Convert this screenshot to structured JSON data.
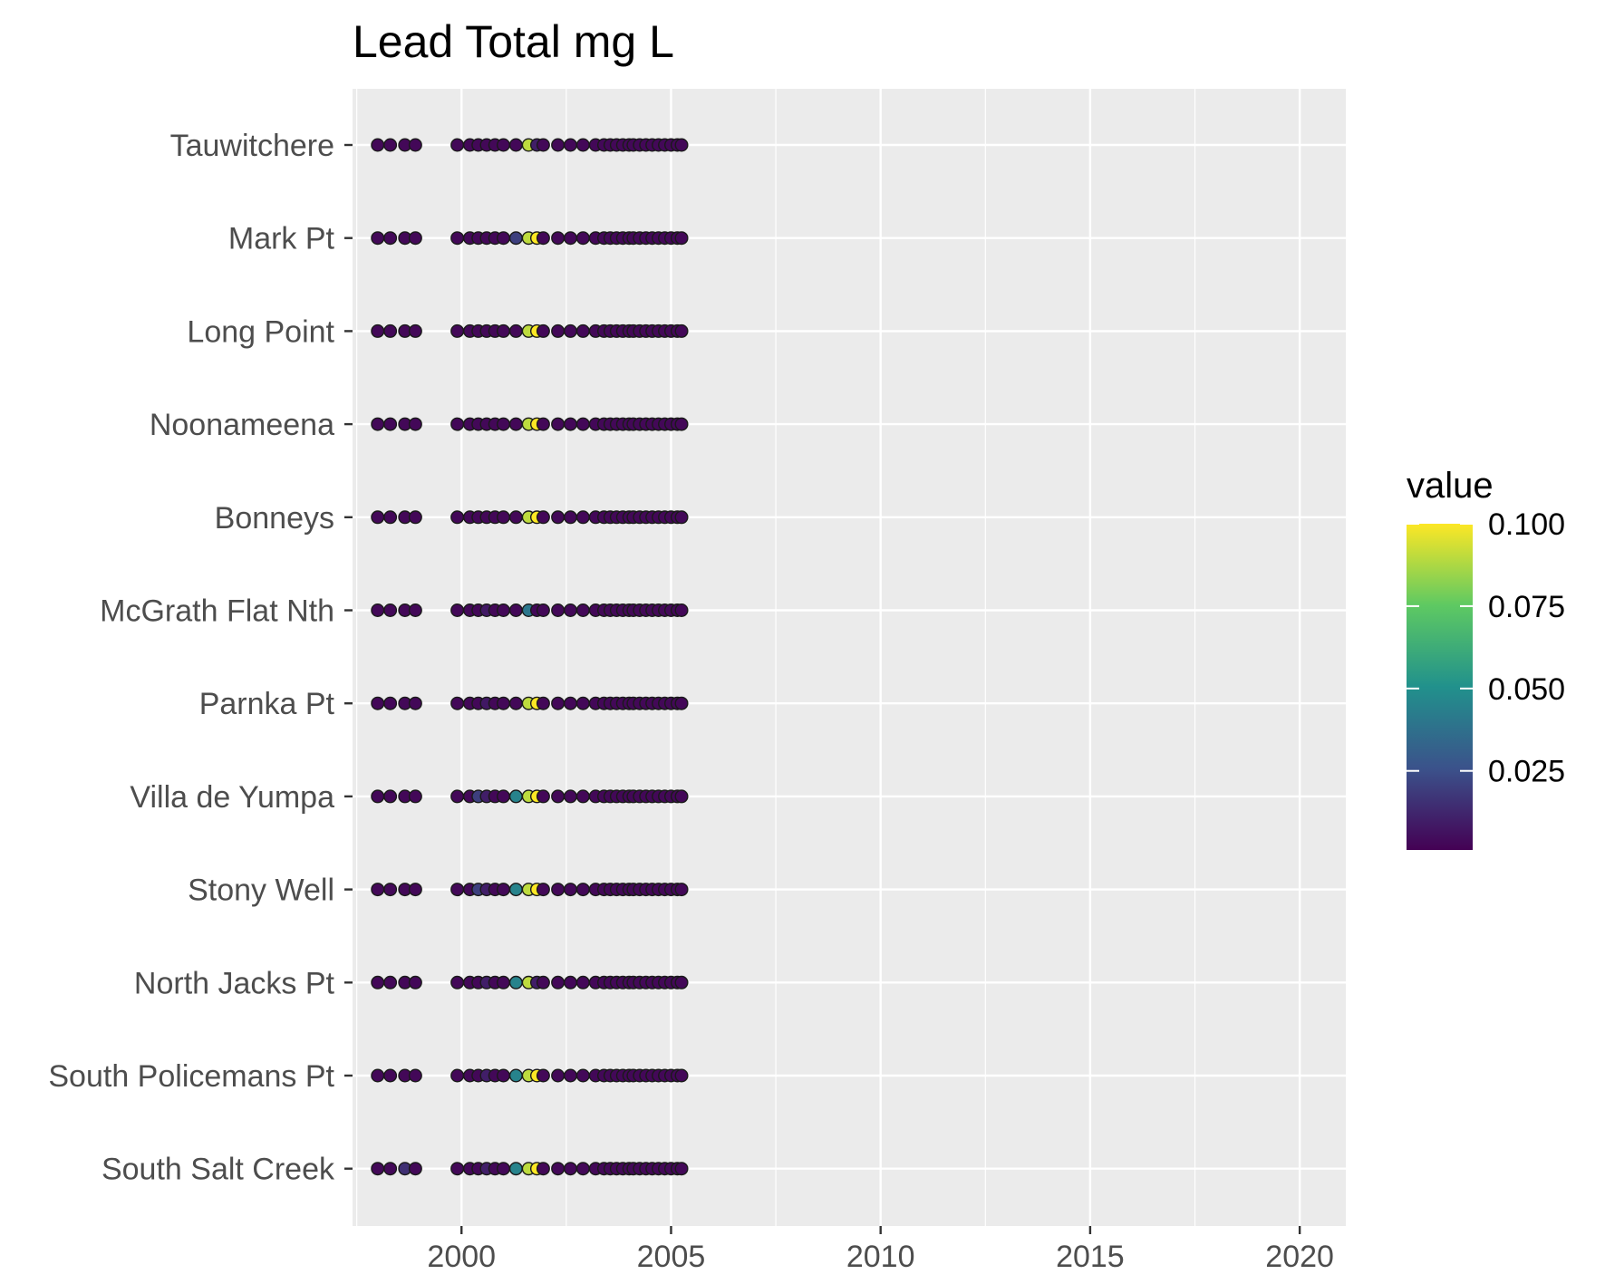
{
  "chart_data": {
    "type": "scatter",
    "title": "Lead Total mg L",
    "xlabel": "",
    "ylabel": "",
    "xlim": [
      1997.4,
      2021.1
    ],
    "x_ticks": [
      2000,
      2005,
      2010,
      2015,
      2020
    ],
    "categories": [
      "Tauwitchere",
      "Mark Pt",
      "Long Point",
      "Noonameena",
      "Bonneys",
      "McGrath Flat Nth",
      "Parnka Pt",
      "Villa de Yumpa",
      "Stony Well",
      "North Jacks Pt",
      "South Policemans Pt",
      "South Salt Creek"
    ],
    "sample_dates": [
      1998.0,
      1998.3,
      1998.65,
      1998.9,
      1999.9,
      2000.2,
      2000.4,
      2000.6,
      2000.8,
      2001.0,
      2001.3,
      2001.6,
      2001.8,
      2001.95,
      2002.3,
      2002.6,
      2002.9,
      2003.2,
      2003.4,
      2003.55,
      2003.7,
      2003.85,
      2004.0,
      2004.1,
      2004.25,
      2004.4,
      2004.55,
      2004.7,
      2004.85,
      2005.0,
      2005.15,
      2005.25
    ],
    "series": [
      {
        "site": "Tauwitchere",
        "values": [
          0.003,
          0.003,
          0.003,
          0.003,
          0.003,
          0.003,
          0.003,
          0.003,
          0.003,
          0.003,
          0.003,
          0.09,
          0.01,
          0.003,
          0.003,
          0.003,
          0.003,
          0.003,
          0.003,
          0.003,
          0.003,
          0.003,
          0.003,
          0.003,
          0.003,
          0.003,
          0.003,
          0.003,
          0.003,
          0.003,
          0.003,
          0.003
        ]
      },
      {
        "site": "Mark Pt",
        "values": [
          0.003,
          0.003,
          0.003,
          0.003,
          0.003,
          0.003,
          0.003,
          0.003,
          0.003,
          0.003,
          0.02,
          0.09,
          0.1,
          0.003,
          0.003,
          0.003,
          0.003,
          0.003,
          0.003,
          0.003,
          0.003,
          0.003,
          0.003,
          0.003,
          0.003,
          0.003,
          0.003,
          0.003,
          0.003,
          0.003,
          0.003,
          0.003
        ]
      },
      {
        "site": "Long Point",
        "values": [
          0.003,
          0.003,
          0.003,
          0.003,
          0.003,
          0.003,
          0.003,
          0.003,
          0.003,
          0.003,
          0.003,
          0.09,
          0.1,
          0.003,
          0.003,
          0.003,
          0.003,
          0.003,
          0.003,
          0.003,
          0.003,
          0.003,
          0.003,
          0.003,
          0.003,
          0.003,
          0.003,
          0.003,
          0.003,
          0.003,
          0.003,
          0.003
        ]
      },
      {
        "site": "Noonameena",
        "values": [
          0.003,
          0.003,
          0.003,
          0.003,
          0.003,
          0.003,
          0.003,
          0.003,
          0.003,
          0.003,
          0.003,
          0.09,
          0.1,
          0.003,
          0.003,
          0.003,
          0.003,
          0.003,
          0.003,
          0.003,
          0.003,
          0.003,
          0.003,
          0.003,
          0.003,
          0.003,
          0.003,
          0.003,
          0.003,
          0.003,
          0.003,
          0.003
        ]
      },
      {
        "site": "Bonneys",
        "values": [
          0.003,
          0.003,
          0.003,
          0.003,
          0.003,
          0.003,
          0.003,
          0.003,
          0.003,
          0.003,
          0.003,
          0.09,
          0.1,
          0.003,
          0.003,
          0.003,
          0.003,
          0.003,
          0.003,
          0.003,
          0.003,
          0.003,
          0.003,
          0.003,
          0.003,
          0.003,
          0.003,
          0.003,
          0.003,
          0.003,
          0.003,
          0.003
        ]
      },
      {
        "site": "McGrath Flat Nth",
        "values": [
          0.003,
          0.003,
          0.003,
          0.003,
          0.003,
          0.003,
          0.003,
          0.008,
          0.003,
          0.003,
          0.003,
          0.04,
          0.003,
          0.003,
          0.003,
          0.003,
          0.003,
          0.003,
          0.003,
          0.003,
          0.003,
          0.003,
          0.003,
          0.003,
          0.003,
          0.003,
          0.003,
          0.003,
          0.003,
          0.003,
          0.003,
          0.003
        ]
      },
      {
        "site": "Parnka Pt",
        "values": [
          0.003,
          0.003,
          0.003,
          0.003,
          0.003,
          0.003,
          0.003,
          0.008,
          0.003,
          0.003,
          0.003,
          0.09,
          0.1,
          0.003,
          0.003,
          0.003,
          0.003,
          0.003,
          0.003,
          0.003,
          0.003,
          0.003,
          0.003,
          0.003,
          0.003,
          0.003,
          0.003,
          0.003,
          0.003,
          0.003,
          0.003,
          0.003
        ]
      },
      {
        "site": "Villa de Yumpa",
        "values": [
          0.003,
          0.003,
          0.003,
          0.003,
          0.003,
          0.003,
          0.02,
          0.01,
          0.003,
          0.003,
          0.045,
          0.09,
          0.1,
          0.003,
          0.003,
          0.003,
          0.003,
          0.003,
          0.003,
          0.003,
          0.003,
          0.003,
          0.003,
          0.003,
          0.003,
          0.003,
          0.003,
          0.003,
          0.003,
          0.003,
          0.003,
          0.003
        ]
      },
      {
        "site": "Stony Well",
        "values": [
          0.003,
          0.003,
          0.003,
          0.003,
          0.003,
          0.003,
          0.02,
          0.01,
          0.003,
          0.003,
          0.045,
          0.09,
          0.1,
          0.003,
          0.003,
          0.003,
          0.003,
          0.003,
          0.003,
          0.003,
          0.003,
          0.003,
          0.003,
          0.003,
          0.003,
          0.003,
          0.003,
          0.003,
          0.003,
          0.003,
          0.003,
          0.003
        ]
      },
      {
        "site": "North Jacks Pt",
        "values": [
          0.003,
          0.003,
          0.003,
          0.003,
          0.003,
          0.003,
          0.003,
          0.01,
          0.003,
          0.003,
          0.045,
          0.09,
          0.01,
          0.003,
          0.003,
          0.003,
          0.003,
          0.003,
          0.003,
          0.003,
          0.003,
          0.003,
          0.003,
          0.003,
          0.003,
          0.003,
          0.003,
          0.003,
          0.003,
          0.003,
          0.003,
          0.003
        ]
      },
      {
        "site": "South Policemans Pt",
        "values": [
          0.003,
          0.003,
          0.003,
          0.003,
          0.003,
          0.003,
          0.003,
          0.01,
          0.003,
          0.003,
          0.045,
          0.09,
          0.1,
          0.003,
          0.003,
          0.003,
          0.003,
          0.003,
          0.003,
          0.003,
          0.003,
          0.003,
          0.003,
          0.003,
          0.003,
          0.003,
          0.003,
          0.003,
          0.003,
          0.003,
          0.003,
          0.003
        ]
      },
      {
        "site": "South Salt Creek",
        "values": [
          0.003,
          0.003,
          0.015,
          0.003,
          0.003,
          0.003,
          0.003,
          0.01,
          0.003,
          0.003,
          0.045,
          0.09,
          0.1,
          0.003,
          0.003,
          0.003,
          0.003,
          0.003,
          0.003,
          0.003,
          0.003,
          0.003,
          0.003,
          0.003,
          0.003,
          0.003,
          0.003,
          0.003,
          0.003,
          0.003,
          0.003,
          0.003
        ]
      }
    ],
    "legend": {
      "title": "value",
      "position": "right",
      "range": [
        0.001,
        0.1
      ],
      "ticks": [
        0.025,
        0.05,
        0.075,
        0.1
      ],
      "tick_labels": [
        "0.025",
        "0.050",
        "0.075",
        "0.100"
      ],
      "colormap": "viridis"
    },
    "colors": {
      "panel_background": "#ebebeb",
      "grid": "#ffffff",
      "point_outline": "#1a1a1a",
      "viridis_stops": [
        "#440154",
        "#3b528b",
        "#21918c",
        "#5ec962",
        "#fde725"
      ]
    },
    "grid": true
  }
}
